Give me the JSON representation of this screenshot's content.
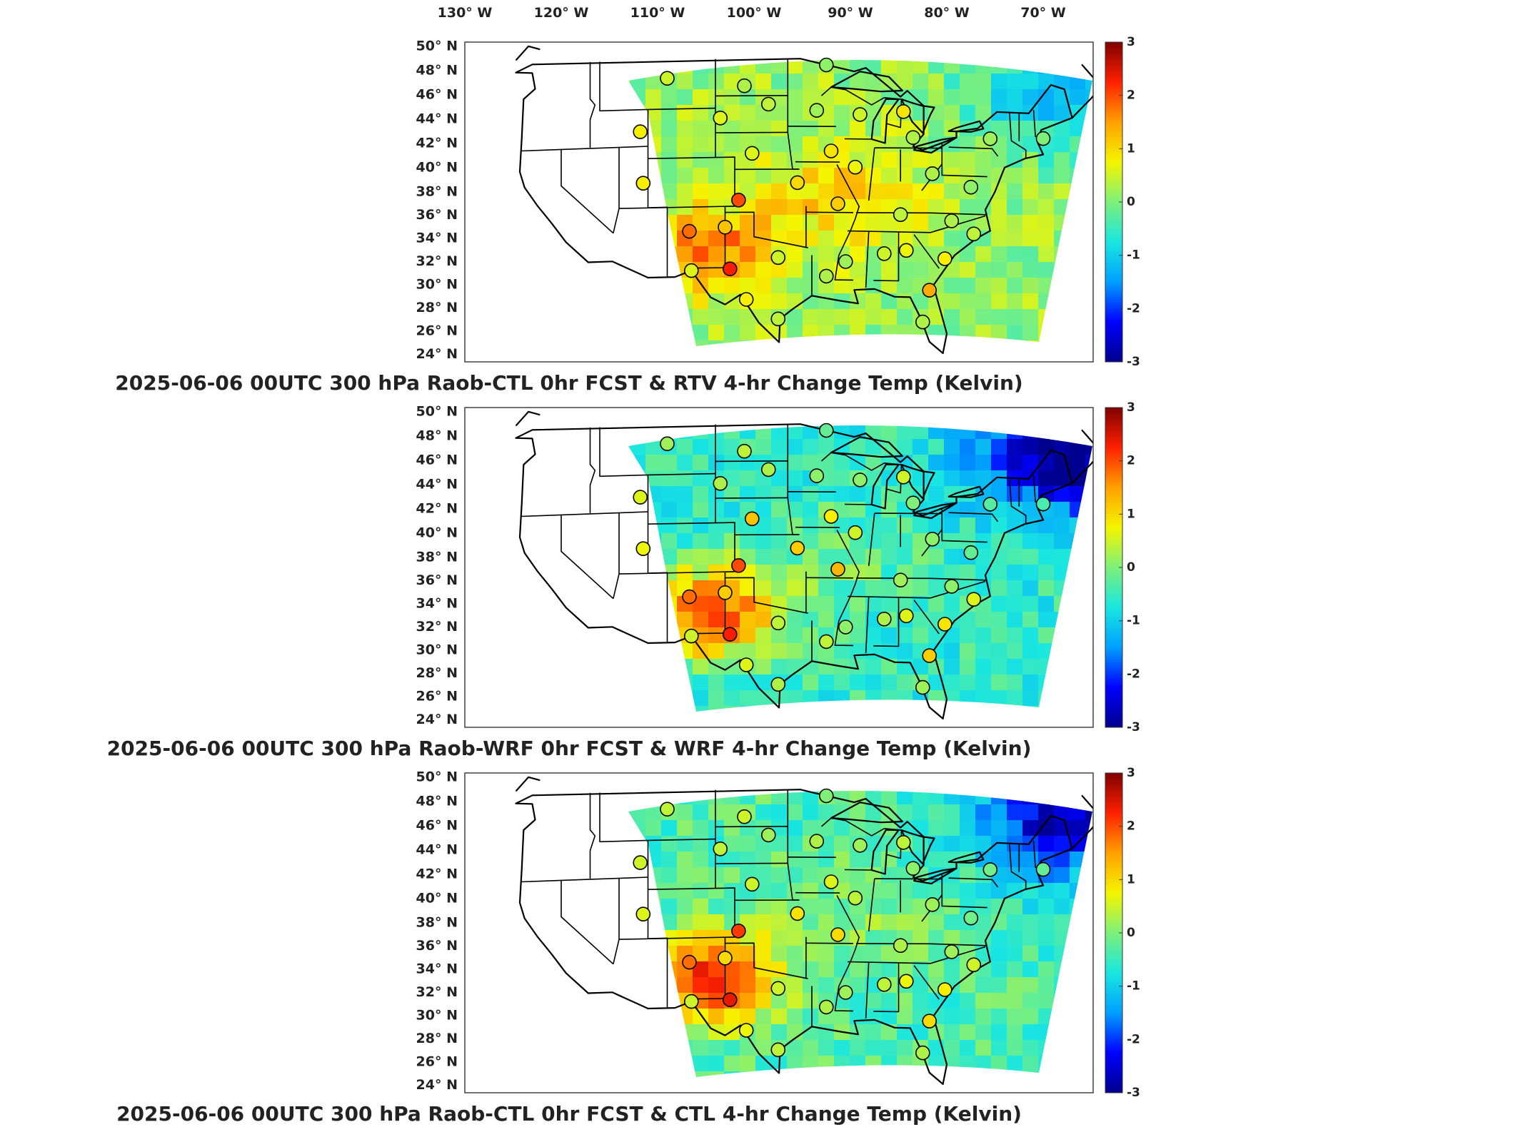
{
  "lon_labels": [
    "130",
    "120",
    "110",
    "100",
    "90",
    "80",
    "70"
  ],
  "lon_hemisphere": "W",
  "lat_labels": [
    "50",
    "48",
    "46",
    "44",
    "42",
    "40",
    "38",
    "36",
    "34",
    "32",
    "30",
    "28",
    "26",
    "24"
  ],
  "lat_hemisphere": "N",
  "degree_symbol": "°",
  "colorbar": {
    "ticks": [
      "3",
      "2",
      "1",
      "0",
      "-1",
      "-2",
      "-3"
    ],
    "min": -3,
    "max": 3,
    "colormap": [
      "#00008f",
      "#0000ff",
      "#00a0ff",
      "#19e6e0",
      "#7ef07a",
      "#f5f500",
      "#ffa000",
      "#ff2000",
      "#800000"
    ]
  },
  "panels": [
    {
      "title": "2025-06-06 00UTC 300 hPa Raob-CTL 0hr FCST & RTV 4-hr Change Temp (Kelvin)",
      "field_bias": 0.15,
      "northeast_cold": -1.6,
      "southwest_warm": 1.5
    },
    {
      "title": "2025-06-06 00UTC 300 hPa Raob-WRF 0hr FCST & WRF 4-hr Change Temp (Kelvin)",
      "field_bias": -0.55,
      "northeast_cold": -2.6,
      "southwest_warm": 2.6
    },
    {
      "title": "2025-06-06 00UTC 300 hPa Raob-CTL 0hr FCST & CTL 4-hr Change Temp (Kelvin)",
      "field_bias": -0.35,
      "northeast_cold": -2.4,
      "southwest_warm": 2.5
    }
  ],
  "stations": [
    {
      "lon": -109.0,
      "lat": 47.5,
      "v": [
        0.5,
        0.2,
        0.4
      ]
    },
    {
      "lon": -101.0,
      "lat": 46.8,
      "v": [
        0.3,
        0.4,
        0.5
      ]
    },
    {
      "lon": -92.5,
      "lat": 48.5,
      "v": [
        0.1,
        -0.2,
        0.0
      ]
    },
    {
      "lon": -98.5,
      "lat": 45.3,
      "v": [
        0.4,
        0.3,
        0.2
      ]
    },
    {
      "lon": -93.5,
      "lat": 44.8,
      "v": [
        0.2,
        0.1,
        0.3
      ]
    },
    {
      "lon": -103.5,
      "lat": 44.2,
      "v": [
        0.6,
        0.3,
        0.4
      ]
    },
    {
      "lon": -111.8,
      "lat": 43.2,
      "v": [
        0.8,
        0.6,
        0.5
      ]
    },
    {
      "lon": -89.0,
      "lat": 44.5,
      "v": [
        0.5,
        0.1,
        0.2
      ]
    },
    {
      "lon": -84.5,
      "lat": 44.8,
      "v": [
        0.9,
        0.5,
        0.4
      ]
    },
    {
      "lon": -83.5,
      "lat": 42.7,
      "v": [
        0.3,
        0.0,
        0.1
      ]
    },
    {
      "lon": -75.5,
      "lat": 42.8,
      "v": [
        0.2,
        -0.3,
        -0.1
      ]
    },
    {
      "lon": -70.0,
      "lat": 43.0,
      "v": [
        0.0,
        -0.4,
        -0.2
      ]
    },
    {
      "lon": -100.2,
      "lat": 41.3,
      "v": [
        0.6,
        1.2,
        0.5
      ]
    },
    {
      "lon": -92.0,
      "lat": 41.5,
      "v": [
        0.9,
        0.8,
        0.6
      ]
    },
    {
      "lon": -89.5,
      "lat": 40.2,
      "v": [
        0.7,
        0.5,
        0.4
      ]
    },
    {
      "lon": -81.5,
      "lat": 39.8,
      "v": [
        0.3,
        0.1,
        0.2
      ]
    },
    {
      "lon": -77.5,
      "lat": 38.8,
      "v": [
        0.1,
        -0.2,
        -0.1
      ]
    },
    {
      "lon": -111.5,
      "lat": 39.0,
      "v": [
        0.8,
        0.7,
        0.6
      ]
    },
    {
      "lon": -95.5,
      "lat": 38.9,
      "v": [
        1.0,
        1.1,
        0.9
      ]
    },
    {
      "lon": -101.6,
      "lat": 37.5,
      "v": [
        2.0,
        2.0,
        2.1
      ]
    },
    {
      "lon": -91.3,
      "lat": 37.2,
      "v": [
        1.1,
        1.3,
        1.0
      ]
    },
    {
      "lon": -84.8,
      "lat": 36.4,
      "v": [
        0.4,
        0.2,
        0.3
      ]
    },
    {
      "lon": -79.5,
      "lat": 36.0,
      "v": [
        0.3,
        0.1,
        0.2
      ]
    },
    {
      "lon": -106.7,
      "lat": 35.0,
      "v": [
        1.8,
        1.8,
        1.8
      ]
    },
    {
      "lon": -103.0,
      "lat": 35.3,
      "v": [
        1.2,
        1.1,
        1.0
      ]
    },
    {
      "lon": -77.2,
      "lat": 35.0,
      "v": [
        0.4,
        0.6,
        0.5
      ]
    },
    {
      "lon": -97.5,
      "lat": 32.8,
      "v": [
        0.5,
        0.4,
        0.5
      ]
    },
    {
      "lon": -86.5,
      "lat": 33.2,
      "v": [
        0.5,
        0.3,
        0.4
      ]
    },
    {
      "lon": -84.2,
      "lat": 33.5,
      "v": [
        0.7,
        0.6,
        0.7
      ]
    },
    {
      "lon": -90.5,
      "lat": 32.5,
      "v": [
        0.2,
        0.1,
        0.2
      ]
    },
    {
      "lon": -80.2,
      "lat": 32.9,
      "v": [
        0.8,
        0.9,
        0.8
      ]
    },
    {
      "lon": -102.5,
      "lat": 31.9,
      "v": [
        2.3,
        2.3,
        2.4
      ]
    },
    {
      "lon": -106.5,
      "lat": 31.8,
      "v": [
        0.6,
        0.5,
        0.5
      ]
    },
    {
      "lon": -92.5,
      "lat": 31.3,
      "v": [
        0.3,
        0.4,
        0.3
      ]
    },
    {
      "lon": -81.8,
      "lat": 30.3,
      "v": [
        1.4,
        1.1,
        1.0
      ]
    },
    {
      "lon": -100.8,
      "lat": 29.4,
      "v": [
        0.8,
        0.6,
        0.7
      ]
    },
    {
      "lon": -97.5,
      "lat": 27.8,
      "v": [
        0.4,
        0.3,
        0.4
      ]
    },
    {
      "lon": -82.5,
      "lat": 27.7,
      "v": [
        0.3,
        0.2,
        0.3
      ]
    }
  ]
}
